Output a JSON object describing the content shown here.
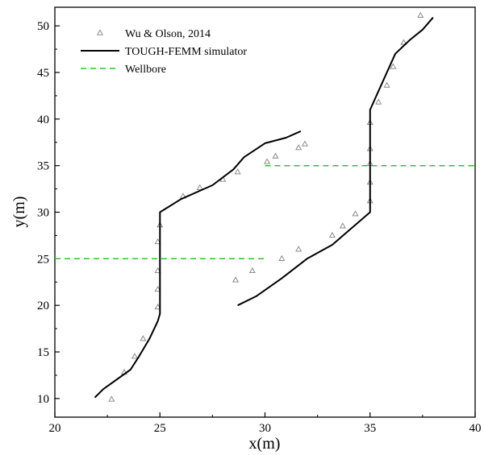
{
  "chart_data": {
    "type": "scatter",
    "title": "",
    "xlabel": "x(m)",
    "ylabel": "y(m)",
    "xlim": [
      20,
      40
    ],
    "ylim": [
      8,
      52
    ],
    "xticks": [
      20,
      25,
      30,
      35,
      40
    ],
    "yticks": [
      10,
      15,
      20,
      25,
      30,
      35,
      40,
      45,
      50
    ],
    "grid": false,
    "legend_position": "top-left",
    "series": [
      {
        "name": "Wu & Olson, 2014",
        "kind": "scatter",
        "marker": "triangle-open",
        "color": "#808080",
        "points": [
          [
            22.7,
            9.9
          ],
          [
            23.3,
            12.8
          ],
          [
            23.8,
            14.5
          ],
          [
            24.2,
            16.4
          ],
          [
            24.9,
            19.8
          ],
          [
            24.9,
            21.7
          ],
          [
            24.9,
            23.7
          ],
          [
            24.9,
            26.8
          ],
          [
            25.0,
            28.6
          ],
          [
            26.1,
            31.7
          ],
          [
            26.9,
            32.6
          ],
          [
            28.0,
            33.5
          ],
          [
            28.7,
            34.3
          ],
          [
            28.6,
            22.7
          ],
          [
            29.4,
            23.7
          ],
          [
            30.8,
            25.0
          ],
          [
            31.6,
            26.0
          ],
          [
            30.1,
            35.4
          ],
          [
            30.5,
            36.0
          ],
          [
            31.6,
            36.9
          ],
          [
            31.9,
            37.3
          ],
          [
            33.2,
            27.5
          ],
          [
            33.7,
            28.5
          ],
          [
            34.3,
            29.8
          ],
          [
            35.0,
            31.2
          ],
          [
            35.0,
            33.2
          ],
          [
            35.0,
            35.2
          ],
          [
            35.0,
            36.8
          ],
          [
            35.0,
            39.6
          ],
          [
            35.4,
            41.8
          ],
          [
            35.8,
            43.6
          ],
          [
            36.1,
            45.6
          ],
          [
            36.6,
            48.2
          ],
          [
            37.4,
            51.1
          ]
        ]
      },
      {
        "name": "TOUGH-FEMM simulator",
        "kind": "line",
        "style": "solid",
        "color": "#000000",
        "segments": [
          [
            [
              21.9,
              10.1
            ],
            [
              22.3,
              11.0
            ],
            [
              23.6,
              13.1
            ],
            [
              24.0,
              14.5
            ],
            [
              24.5,
              16.4
            ],
            [
              24.9,
              18.3
            ],
            [
              25.0,
              19.1
            ],
            [
              25.0,
              30.0
            ],
            [
              26.0,
              31.4
            ],
            [
              27.5,
              32.9
            ],
            [
              28.5,
              34.6
            ],
            [
              29.0,
              35.9
            ],
            [
              30.0,
              37.4
            ],
            [
              31.0,
              38.0
            ],
            [
              31.7,
              38.7
            ]
          ],
          [
            [
              28.7,
              20.0
            ],
            [
              29.6,
              21.0
            ],
            [
              30.8,
              22.9
            ],
            [
              32.0,
              25.0
            ],
            [
              33.2,
              26.5
            ],
            [
              35.0,
              30.0
            ],
            [
              35.0,
              41.0
            ],
            [
              35.5,
              43.5
            ],
            [
              35.9,
              45.5
            ],
            [
              36.2,
              47.0
            ],
            [
              36.9,
              48.5
            ],
            [
              37.5,
              49.6
            ],
            [
              38.0,
              50.9
            ]
          ]
        ]
      },
      {
        "name": "Wellbore",
        "kind": "line",
        "style": "dashed",
        "color": "#22cc22",
        "segments": [
          [
            [
              20.0,
              25.0
            ],
            [
              30.0,
              25.0
            ]
          ],
          [
            [
              30.0,
              35.0
            ],
            [
              40.0,
              35.0
            ]
          ]
        ]
      }
    ]
  }
}
